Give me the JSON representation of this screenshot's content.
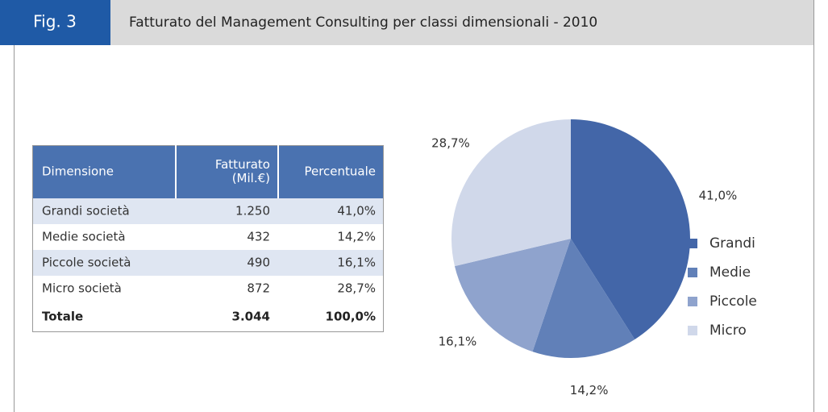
{
  "header": {
    "figure": "Fig. 3",
    "title": "Fatturato del Management Consulting per classi dimensionali - 2010"
  },
  "table": {
    "columns": [
      [
        "Dimensione"
      ],
      [
        "Fatturato",
        "(Mil.€)"
      ],
      [
        "Percentuale"
      ]
    ],
    "rows": [
      [
        "Grandi società",
        "1.250",
        "41,0%"
      ],
      [
        "Medie società",
        "432",
        "14,2%"
      ],
      [
        "Piccole società",
        "490",
        "16,1%"
      ],
      [
        "Micro società",
        "872",
        "28,7%"
      ]
    ],
    "total": [
      "Totale",
      "3.044",
      "100,0%"
    ]
  },
  "chart_data": {
    "type": "pie",
    "categories": [
      "Grandi",
      "Medie",
      "Piccole",
      "Micro"
    ],
    "values": [
      41.0,
      14.2,
      16.1,
      28.7
    ],
    "value_labels": [
      "41,0%",
      "14,2%",
      "16,1%",
      "28,7%"
    ],
    "colors": [
      "#4366a8",
      "#6180b8",
      "#8fa3cd",
      "#d0d8ea"
    ],
    "legend": "right"
  }
}
